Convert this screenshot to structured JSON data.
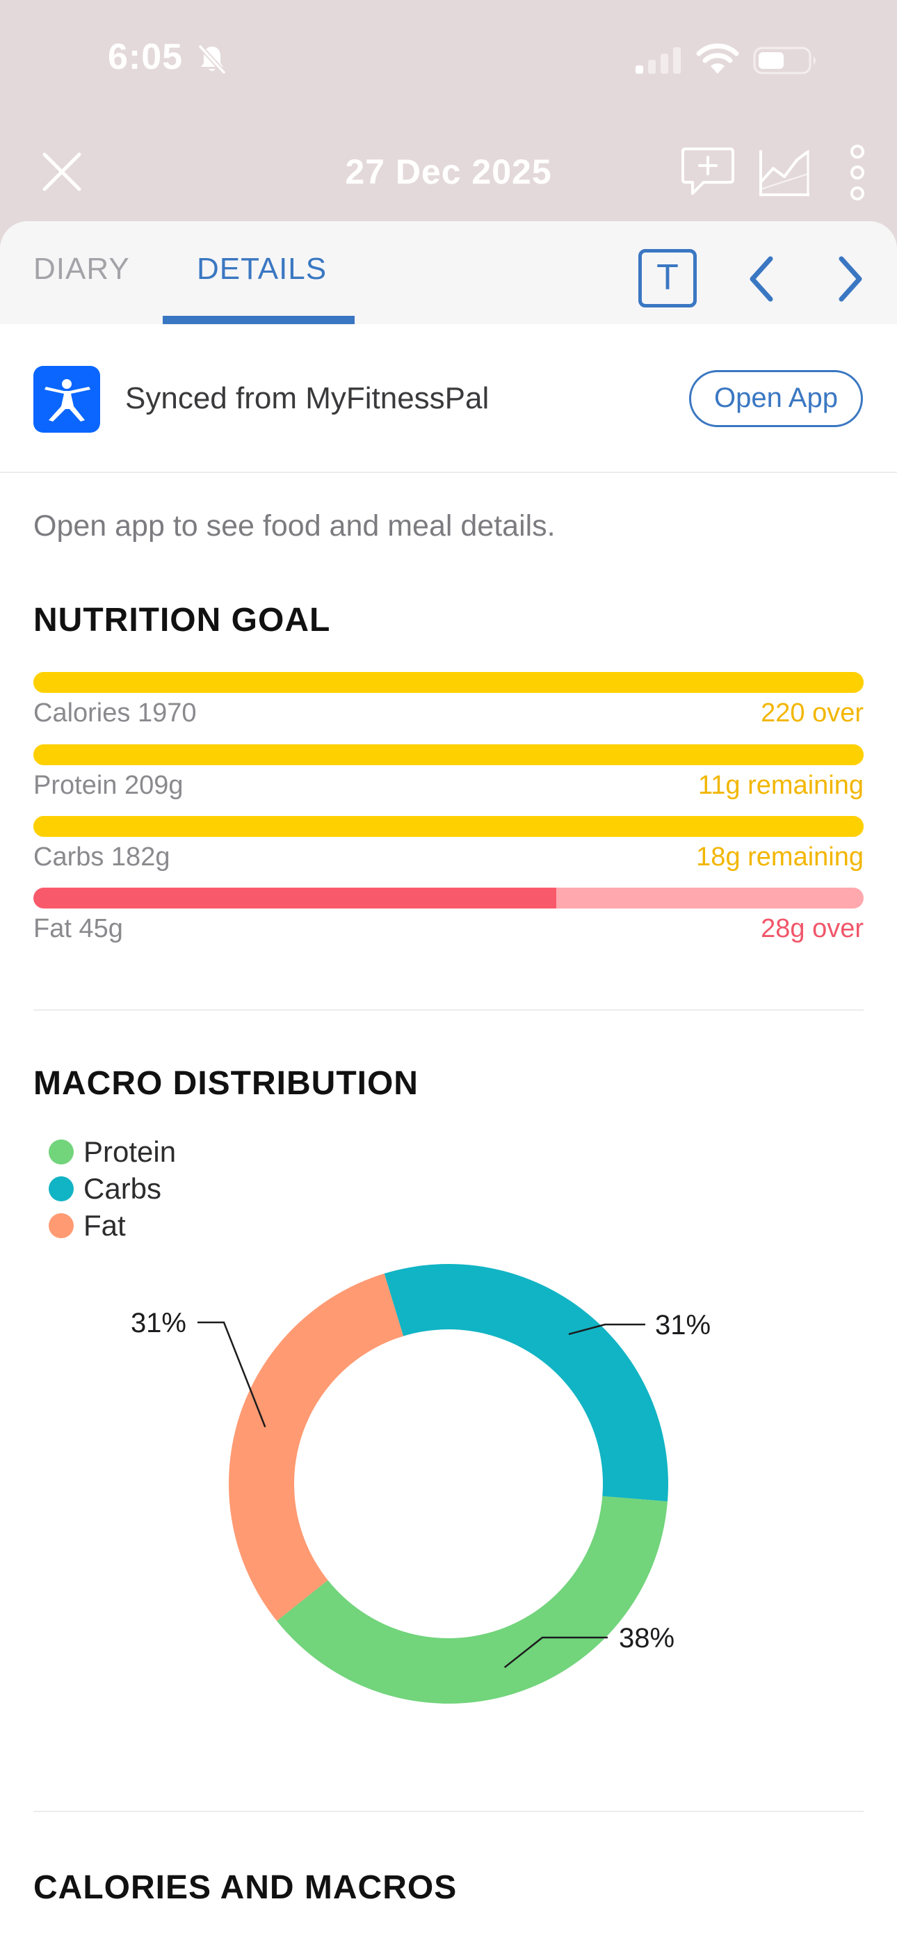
{
  "status_bar": {
    "time": "6:05"
  },
  "nav": {
    "date": "27 Dec 2025"
  },
  "tabs": [
    {
      "label": "DIARY",
      "active": false
    },
    {
      "label": "DETAILS",
      "active": true
    }
  ],
  "toolbar": {
    "text_toggle_label": "T"
  },
  "sync": {
    "text": "Synced from MyFitnessPal",
    "button_label": "Open App"
  },
  "hint": "Open app to see food and meal details.",
  "nutrition_goal": {
    "title": "NUTRITION GOAL",
    "rows": [
      {
        "label": "Calories 1970",
        "status": "220 over",
        "fill_fraction": 1.0,
        "color": "#ffd000",
        "track_color": "#ffd000",
        "status_color": "#f2b600"
      },
      {
        "label": "Protein 209g",
        "status": "11g remaining",
        "fill_fraction": 1.0,
        "color": "#ffd000",
        "track_color": "#ffd000",
        "status_color": "#f2b600"
      },
      {
        "label": "Carbs 182g",
        "status": "18g remaining",
        "fill_fraction": 1.0,
        "color": "#ffd000",
        "track_color": "#ffd000",
        "status_color": "#f2b600"
      },
      {
        "label": "Fat 45g",
        "status": "28g over",
        "fill_fraction": 0.63,
        "color": "#f95a6b",
        "track_color": "#ffa8ae",
        "status_color": "#f0566a"
      }
    ]
  },
  "macro_distribution": {
    "title": "MACRO DISTRIBUTION",
    "legend": [
      {
        "name": "Protein",
        "color": "#72d47b"
      },
      {
        "name": "Carbs",
        "color": "#11b4c4"
      },
      {
        "name": "Fat",
        "color": "#ff9a72"
      }
    ]
  },
  "chart_data": {
    "type": "pie",
    "donut": true,
    "categories": [
      "Carbs",
      "Protein",
      "Fat"
    ],
    "values": [
      31,
      38,
      31
    ],
    "labels": [
      "31%",
      "38%",
      "31%"
    ],
    "colors": [
      "#11b4c4",
      "#72d47b",
      "#ff9a72"
    ],
    "legend_position": "top-left"
  },
  "calories_and_macros": {
    "title": "CALORIES AND MACROS"
  }
}
